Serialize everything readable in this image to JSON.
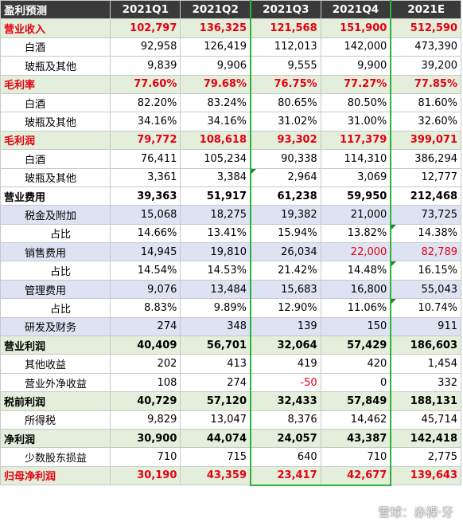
{
  "header": [
    "盈利预测",
    "2021Q1",
    "2021Q2",
    "2021Q3",
    "2021Q4",
    "2021E"
  ],
  "rows": [
    {
      "label": "营业收入",
      "values": [
        "102,797",
        "136,325",
        "121,568",
        "151,900",
        "512,590"
      ]
    },
    {
      "label": "白酒",
      "values": [
        "92,958",
        "126,419",
        "112,013",
        "142,000",
        "473,390"
      ]
    },
    {
      "label": "玻瓶及其他",
      "values": [
        "9,839",
        "9,906",
        "9,555",
        "9,900",
        "39,200"
      ]
    },
    {
      "label": "毛利率",
      "values": [
        "77.60%",
        "79.68%",
        "76.75%",
        "77.27%",
        "77.85%"
      ]
    },
    {
      "label": "白酒",
      "values": [
        "82.20%",
        "83.24%",
        "80.65%",
        "80.50%",
        "81.60%"
      ]
    },
    {
      "label": "玻瓶及其他",
      "values": [
        "34.16%",
        "34.16%",
        "31.02%",
        "31.00%",
        "32.60%"
      ]
    },
    {
      "label": "毛利润",
      "values": [
        "79,772",
        "108,618",
        "93,302",
        "117,379",
        "399,071"
      ]
    },
    {
      "label": "白酒",
      "values": [
        "76,411",
        "105,234",
        "90,338",
        "114,310",
        "386,294"
      ]
    },
    {
      "label": "玻瓶及其他",
      "values": [
        "3,361",
        "3,384",
        "2,964",
        "3,069",
        "12,777"
      ]
    },
    {
      "label": "营业费用",
      "values": [
        "39,363",
        "51,917",
        "61,238",
        "59,950",
        "212,468"
      ]
    },
    {
      "label": "税金及附加",
      "values": [
        "15,068",
        "18,275",
        "19,382",
        "21,000",
        "73,725"
      ]
    },
    {
      "label": "占比",
      "values": [
        "14.66%",
        "13.41%",
        "15.94%",
        "13.82%",
        "14.38%"
      ]
    },
    {
      "label": "销售费用",
      "values": [
        "14,945",
        "19,810",
        "26,034",
        "22,000",
        "82,789"
      ]
    },
    {
      "label": "占比",
      "values": [
        "14.54%",
        "14.53%",
        "21.42%",
        "14.48%",
        "16.15%"
      ]
    },
    {
      "label": "管理费用",
      "values": [
        "9,076",
        "13,484",
        "15,683",
        "16,800",
        "55,043"
      ]
    },
    {
      "label": "占比",
      "values": [
        "8.83%",
        "9.89%",
        "12.90%",
        "11.06%",
        "10.74%"
      ]
    },
    {
      "label": "研发及财务",
      "values": [
        "274",
        "348",
        "139",
        "150",
        "911"
      ]
    },
    {
      "label": "营业利润",
      "values": [
        "40,409",
        "56,701",
        "32,064",
        "57,429",
        "186,603"
      ]
    },
    {
      "label": "其他收益",
      "values": [
        "202",
        "413",
        "419",
        "420",
        "1,454"
      ]
    },
    {
      "label": "营业外净收益",
      "values": [
        "108",
        "274",
        "-50",
        "0",
        "332"
      ]
    },
    {
      "label": "税前利润",
      "values": [
        "40,729",
        "57,120",
        "32,433",
        "57,849",
        "188,131"
      ]
    },
    {
      "label": "所得税",
      "values": [
        "9,829",
        "13,047",
        "8,376",
        "14,462",
        "45,714"
      ]
    },
    {
      "label": "净利润",
      "values": [
        "30,900",
        "44,074",
        "24,057",
        "43,387",
        "142,418"
      ]
    },
    {
      "label": "少数股东损益",
      "values": [
        "710",
        "715",
        "640",
        "710",
        "2,775"
      ]
    },
    {
      "label": "归母净利润",
      "values": [
        "30,190",
        "43,359",
        "23,417",
        "42,677",
        "139,643"
      ]
    }
  ],
  "watermark": "雪球：赤裸·牙"
}
